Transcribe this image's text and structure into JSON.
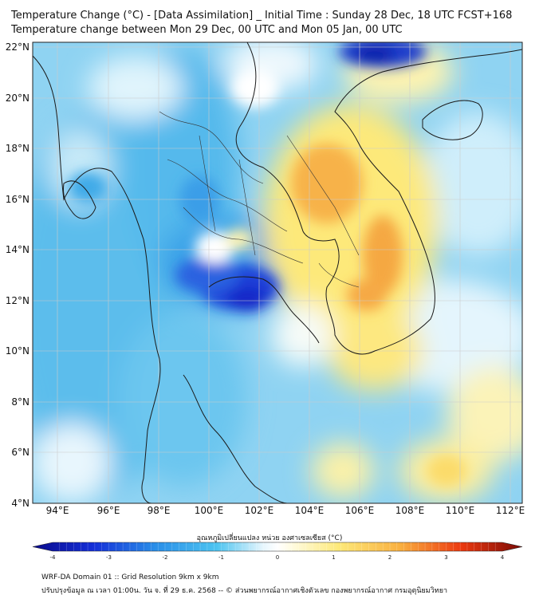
{
  "header": {
    "line1": "Temperature Change (°C) - [Data Assimilation] _ Initial Time : Sunday 28 Dec, 18 UTC FCST+168",
    "line2": "Temperature change between Mon 29 Dec, 00 UTC and Mon 05 Jan, 00 UTC"
  },
  "map": {
    "lon_range": [
      93,
      112.5
    ],
    "lat_range": [
      4,
      22.2
    ],
    "lat_labels": [
      "22°N",
      "20°N",
      "18°N",
      "16°N",
      "14°N",
      "12°N",
      "10°N",
      "8°N",
      "6°N",
      "4°N"
    ],
    "lon_labels": [
      "94°E",
      "96°E",
      "98°E",
      "100°E",
      "102°E",
      "104°E",
      "106°E",
      "108°E",
      "110°E",
      "112°E"
    ],
    "colors": {
      "strong_cold": "#1a2fd0",
      "cold": "#3aa8e8",
      "cool": "#a8ddf4",
      "neutral": "#ffffff",
      "warm": "#fde97a",
      "hot": "#f7a640",
      "hotter": "#e95a0c"
    }
  },
  "colorbar": {
    "title": "อุณหภูมิเปลี่ยนแปลง หน่วย องศาเซลเซียส (°C)",
    "ticks": [
      "-4",
      "-3",
      "-2",
      "-1",
      "0",
      "1",
      "2",
      "3",
      "4"
    ],
    "vmin": -4,
    "vmax": 4
  },
  "footer": {
    "line1": "WRF-DA Domain 01 :: Grid Resolution 9km x 9km",
    "line2": "ปรับปรุงข้อมูล ณ เวลา 01:00น. วัน จ. ที่ 29 ธ.ค. 2568 -- © ส่วนพยากรณ์อากาศเชิงตัวเลข กองพยากรณ์อากาศ กรมอุตุนิยมวิทยา"
  }
}
